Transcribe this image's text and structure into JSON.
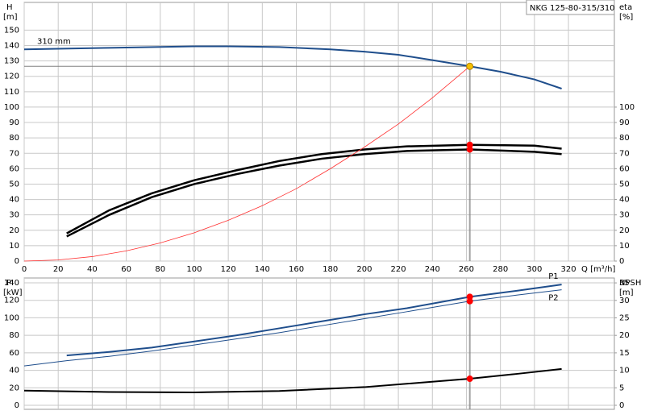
{
  "chart_data": [
    {
      "type": "line",
      "title": "NKG 125-80-315/310",
      "xlabel": "Q [m³/h]",
      "ylabel": "H",
      "yunit": "[m]",
      "y2label": "eta",
      "y2unit": "[%]",
      "xlim": [
        0,
        347
      ],
      "xticks": [
        0,
        20,
        40,
        60,
        80,
        100,
        120,
        140,
        160,
        180,
        200,
        220,
        240,
        260,
        280,
        300,
        320
      ],
      "xtick_labels": true,
      "ylim": [
        0,
        168
      ],
      "yticks": [
        0,
        10,
        20,
        30,
        40,
        50,
        60,
        70,
        80,
        90,
        100,
        110,
        120,
        130,
        140,
        150
      ],
      "y2lim": [
        0,
        168
      ],
      "y2ticks": [
        0,
        10,
        20,
        30,
        40,
        50,
        60,
        70,
        80,
        90,
        100
      ],
      "grid": true,
      "series": [
        {
          "name": "310 mm",
          "color": "#1f4e8c",
          "width": 2,
          "x": [
            0,
            50,
            100,
            120,
            150,
            180,
            200,
            220,
            240,
            262,
            280,
            300,
            316
          ],
          "values": [
            137.5,
            138.5,
            139.5,
            139.5,
            139,
            137.5,
            136,
            134,
            130.5,
            126.5,
            123,
            118,
            112
          ]
        },
        {
          "color": "#000000",
          "width": 2.5,
          "axis": "y2",
          "x": [
            25,
            50,
            75,
            100,
            125,
            150,
            175,
            200,
            225,
            262,
            300,
            316
          ],
          "values": [
            18,
            33,
            44,
            52.5,
            59,
            65,
            69.5,
            72.5,
            74.5,
            75.5,
            75,
            73
          ]
        },
        {
          "color": "#000000",
          "width": 2.5,
          "axis": "y2",
          "x": [
            25,
            50,
            75,
            100,
            125,
            150,
            175,
            200,
            225,
            262,
            300,
            316
          ],
          "values": [
            16,
            30,
            41.5,
            50,
            56.5,
            62,
            66.5,
            69.5,
            71.5,
            72.5,
            71,
            69.5
          ]
        },
        {
          "color": "#ff3030",
          "width": 0.8,
          "x": [
            0,
            20,
            40,
            60,
            80,
            100,
            120,
            140,
            160,
            180,
            200,
            220,
            240,
            262
          ],
          "values": [
            0,
            0.7,
            2.9,
            6.6,
            11.8,
            18.4,
            26.5,
            36,
            47,
            60,
            74,
            89,
            106,
            126.5
          ]
        }
      ],
      "points": [
        {
          "x": 262,
          "y": 126.5,
          "color": "#f5c000",
          "guides": true
        },
        {
          "x": 262,
          "y": 75.5,
          "color": "#ff0000",
          "axis": "y2"
        },
        {
          "x": 262,
          "y": 72.5,
          "color": "#ff0000",
          "axis": "y2"
        }
      ]
    },
    {
      "type": "line",
      "ylabel": "P",
      "yunit": "[kW]",
      "y2label": "NPSH",
      "y2unit": "[m]",
      "xlim": [
        0,
        347
      ],
      "xticks": [
        0,
        20,
        40,
        60,
        80,
        100,
        120,
        140,
        160,
        180,
        200,
        220,
        240,
        260,
        280,
        300,
        320
      ],
      "xtick_labels": false,
      "ylim": [
        -4.6,
        145.5
      ],
      "yticks": [
        0,
        20,
        40,
        60,
        80,
        100,
        120,
        140
      ],
      "y2lim": [
        -1.15,
        36.4
      ],
      "y2ticks": [
        0,
        5,
        10,
        15,
        20,
        25,
        30,
        35
      ],
      "grid": true,
      "series": [
        {
          "name": "P1",
          "color": "#1f4e8c",
          "width": 2,
          "x": [
            25,
            50,
            75,
            100,
            125,
            150,
            175,
            200,
            225,
            262,
            290,
            316
          ],
          "values": [
            57,
            61,
            66,
            73,
            80,
            88,
            96,
            104,
            111,
            124,
            131,
            138
          ]
        },
        {
          "name": "P2",
          "color": "#1f4e8c",
          "width": 1,
          "x": [
            0,
            25,
            50,
            75,
            100,
            125,
            150,
            175,
            200,
            225,
            262,
            290,
            316
          ],
          "values": [
            45,
            51,
            56,
            62,
            69,
            76,
            83,
            91,
            99,
            107,
            119,
            126,
            132
          ]
        },
        {
          "color": "#000000",
          "width": 2,
          "axis": "y2",
          "x": [
            0,
            50,
            100,
            150,
            200,
            262,
            290,
            316
          ],
          "values": [
            4.2,
            3.8,
            3.7,
            4.1,
            5.2,
            7.6,
            9,
            10.4
          ]
        }
      ],
      "points": [
        {
          "x": 262,
          "y": 124,
          "color": "#ff0000",
          "guides": true
        },
        {
          "x": 262,
          "y": 119,
          "color": "#ff0000"
        },
        {
          "x": 262,
          "y": 7.6,
          "color": "#ff0000",
          "axis": "y2"
        }
      ]
    }
  ]
}
